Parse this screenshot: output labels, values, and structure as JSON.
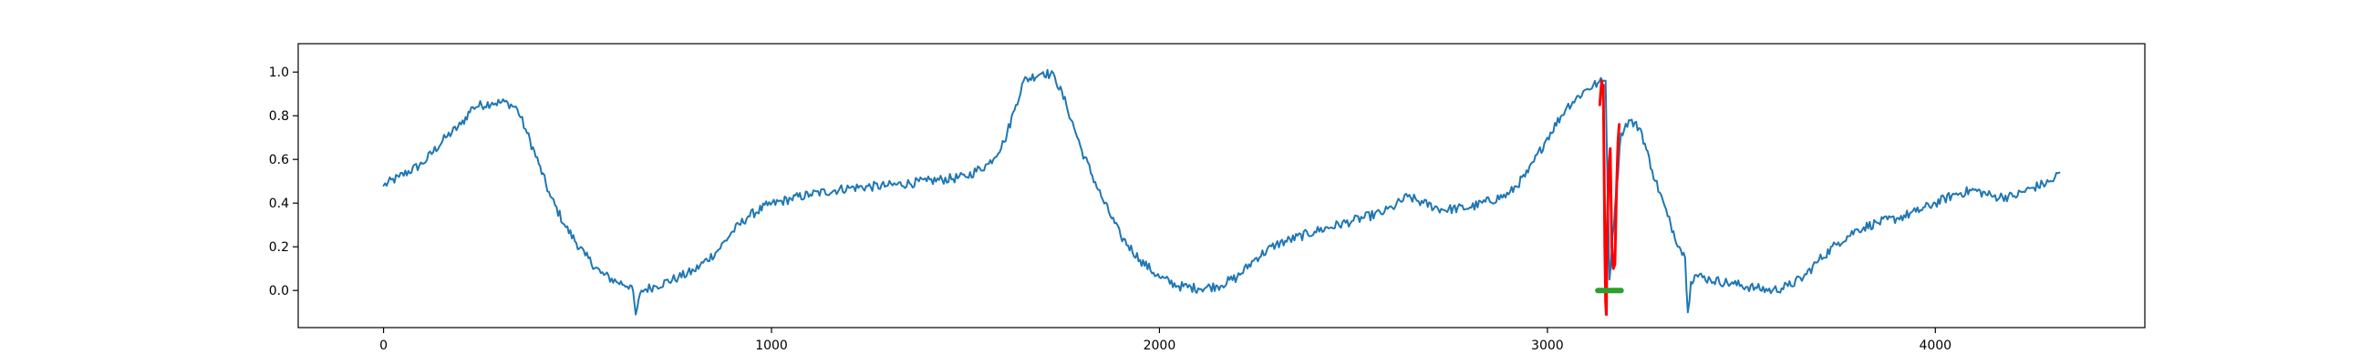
{
  "chart_data": {
    "type": "line",
    "title": "",
    "xlabel": "",
    "ylabel": "",
    "xlim": [
      -220,
      4540
    ],
    "ylim": [
      -0.17,
      1.13
    ],
    "grid": false,
    "legend": null,
    "x_ticks": [
      {
        "value": 0,
        "label": "0"
      },
      {
        "value": 1000,
        "label": "1000"
      },
      {
        "value": 2000,
        "label": "2000"
      },
      {
        "value": 3000,
        "label": "3000"
      },
      {
        "value": 4000,
        "label": "4000"
      }
    ],
    "y_ticks": [
      {
        "value": 0.0,
        "label": "0.0"
      },
      {
        "value": 0.2,
        "label": "0.2"
      },
      {
        "value": 0.4,
        "label": "0.4"
      },
      {
        "value": 0.6,
        "label": "0.6"
      },
      {
        "value": 0.8,
        "label": "0.8"
      },
      {
        "value": 1.0,
        "label": "1.0"
      }
    ],
    "series": [
      {
        "color": "#1f77b4",
        "noise": 0.022,
        "points": [
          [
            0,
            0.48
          ],
          [
            40,
            0.52
          ],
          [
            100,
            0.58
          ],
          [
            160,
            0.7
          ],
          [
            200,
            0.76
          ],
          [
            230,
            0.84
          ],
          [
            280,
            0.86
          ],
          [
            320,
            0.86
          ],
          [
            345,
            0.83
          ],
          [
            370,
            0.72
          ],
          [
            400,
            0.58
          ],
          [
            430,
            0.43
          ],
          [
            470,
            0.29
          ],
          [
            520,
            0.16
          ],
          [
            560,
            0.08
          ],
          [
            600,
            0.04
          ],
          [
            640,
            0.02
          ],
          [
            650,
            -0.11
          ],
          [
            665,
            0.0
          ],
          [
            700,
            0.02
          ],
          [
            760,
            0.06
          ],
          [
            800,
            0.09
          ],
          [
            860,
            0.18
          ],
          [
            900,
            0.27
          ],
          [
            940,
            0.34
          ],
          [
            990,
            0.39
          ],
          [
            1050,
            0.42
          ],
          [
            1100,
            0.44
          ],
          [
            1200,
            0.47
          ],
          [
            1300,
            0.48
          ],
          [
            1400,
            0.5
          ],
          [
            1500,
            0.52
          ],
          [
            1560,
            0.58
          ],
          [
            1600,
            0.68
          ],
          [
            1630,
            0.85
          ],
          [
            1650,
            0.96
          ],
          [
            1700,
            1.0
          ],
          [
            1730,
            0.98
          ],
          [
            1760,
            0.85
          ],
          [
            1800,
            0.64
          ],
          [
            1850,
            0.43
          ],
          [
            1900,
            0.25
          ],
          [
            1950,
            0.14
          ],
          [
            2000,
            0.06
          ],
          [
            2050,
            0.02
          ],
          [
            2100,
            0.01
          ],
          [
            2150,
            0.02
          ],
          [
            2200,
            0.06
          ],
          [
            2250,
            0.15
          ],
          [
            2300,
            0.21
          ],
          [
            2400,
            0.27
          ],
          [
            2500,
            0.32
          ],
          [
            2580,
            0.36
          ],
          [
            2600,
            0.38
          ],
          [
            2640,
            0.43
          ],
          [
            2680,
            0.4
          ],
          [
            2730,
            0.37
          ],
          [
            2800,
            0.38
          ],
          [
            2900,
            0.44
          ],
          [
            2950,
            0.54
          ],
          [
            3000,
            0.7
          ],
          [
            3050,
            0.84
          ],
          [
            3100,
            0.92
          ],
          [
            3130,
            0.95
          ],
          [
            3150,
            0.96
          ],
          [
            3160,
            0.05
          ],
          [
            3175,
            0.4
          ],
          [
            3190,
            0.72
          ],
          [
            3210,
            0.78
          ],
          [
            3240,
            0.74
          ],
          [
            3270,
            0.55
          ],
          [
            3310,
            0.34
          ],
          [
            3340,
            0.2
          ],
          [
            3355,
            0.15
          ],
          [
            3362,
            -0.1
          ],
          [
            3370,
            0.04
          ],
          [
            3380,
            0.07
          ],
          [
            3420,
            0.05
          ],
          [
            3480,
            0.03
          ],
          [
            3540,
            0.01
          ],
          [
            3580,
            0.0
          ],
          [
            3620,
            0.02
          ],
          [
            3660,
            0.06
          ],
          [
            3700,
            0.14
          ],
          [
            3750,
            0.22
          ],
          [
            3800,
            0.28
          ],
          [
            3850,
            0.31
          ],
          [
            3900,
            0.33
          ],
          [
            3950,
            0.36
          ],
          [
            4000,
            0.4
          ],
          [
            4050,
            0.44
          ],
          [
            4100,
            0.46
          ],
          [
            4150,
            0.43
          ],
          [
            4200,
            0.43
          ],
          [
            4250,
            0.47
          ],
          [
            4300,
            0.5
          ],
          [
            4320,
            0.54
          ]
        ]
      },
      {
        "color": "#ff0000",
        "noise": 0.03,
        "points": [
          [
            3135,
            0.85
          ],
          [
            3138,
            0.92
          ],
          [
            3140,
            0.96
          ],
          [
            3142,
            0.9
          ],
          [
            3144,
            0.94
          ],
          [
            3146,
            0.6
          ],
          [
            3148,
            0.2
          ],
          [
            3150,
            -0.05
          ],
          [
            3152,
            -0.11
          ],
          [
            3154,
            0.25
          ],
          [
            3158,
            0.55
          ],
          [
            3162,
            0.65
          ],
          [
            3166,
            0.2
          ],
          [
            3170,
            0.1
          ],
          [
            3174,
            0.12
          ],
          [
            3178,
            0.45
          ],
          [
            3182,
            0.68
          ],
          [
            3185,
            0.76
          ]
        ]
      },
      {
        "color": "#2ca02c",
        "noise": 0.0,
        "points": [
          [
            3130,
            0.0
          ],
          [
            3190,
            0.0
          ]
        ]
      }
    ]
  }
}
